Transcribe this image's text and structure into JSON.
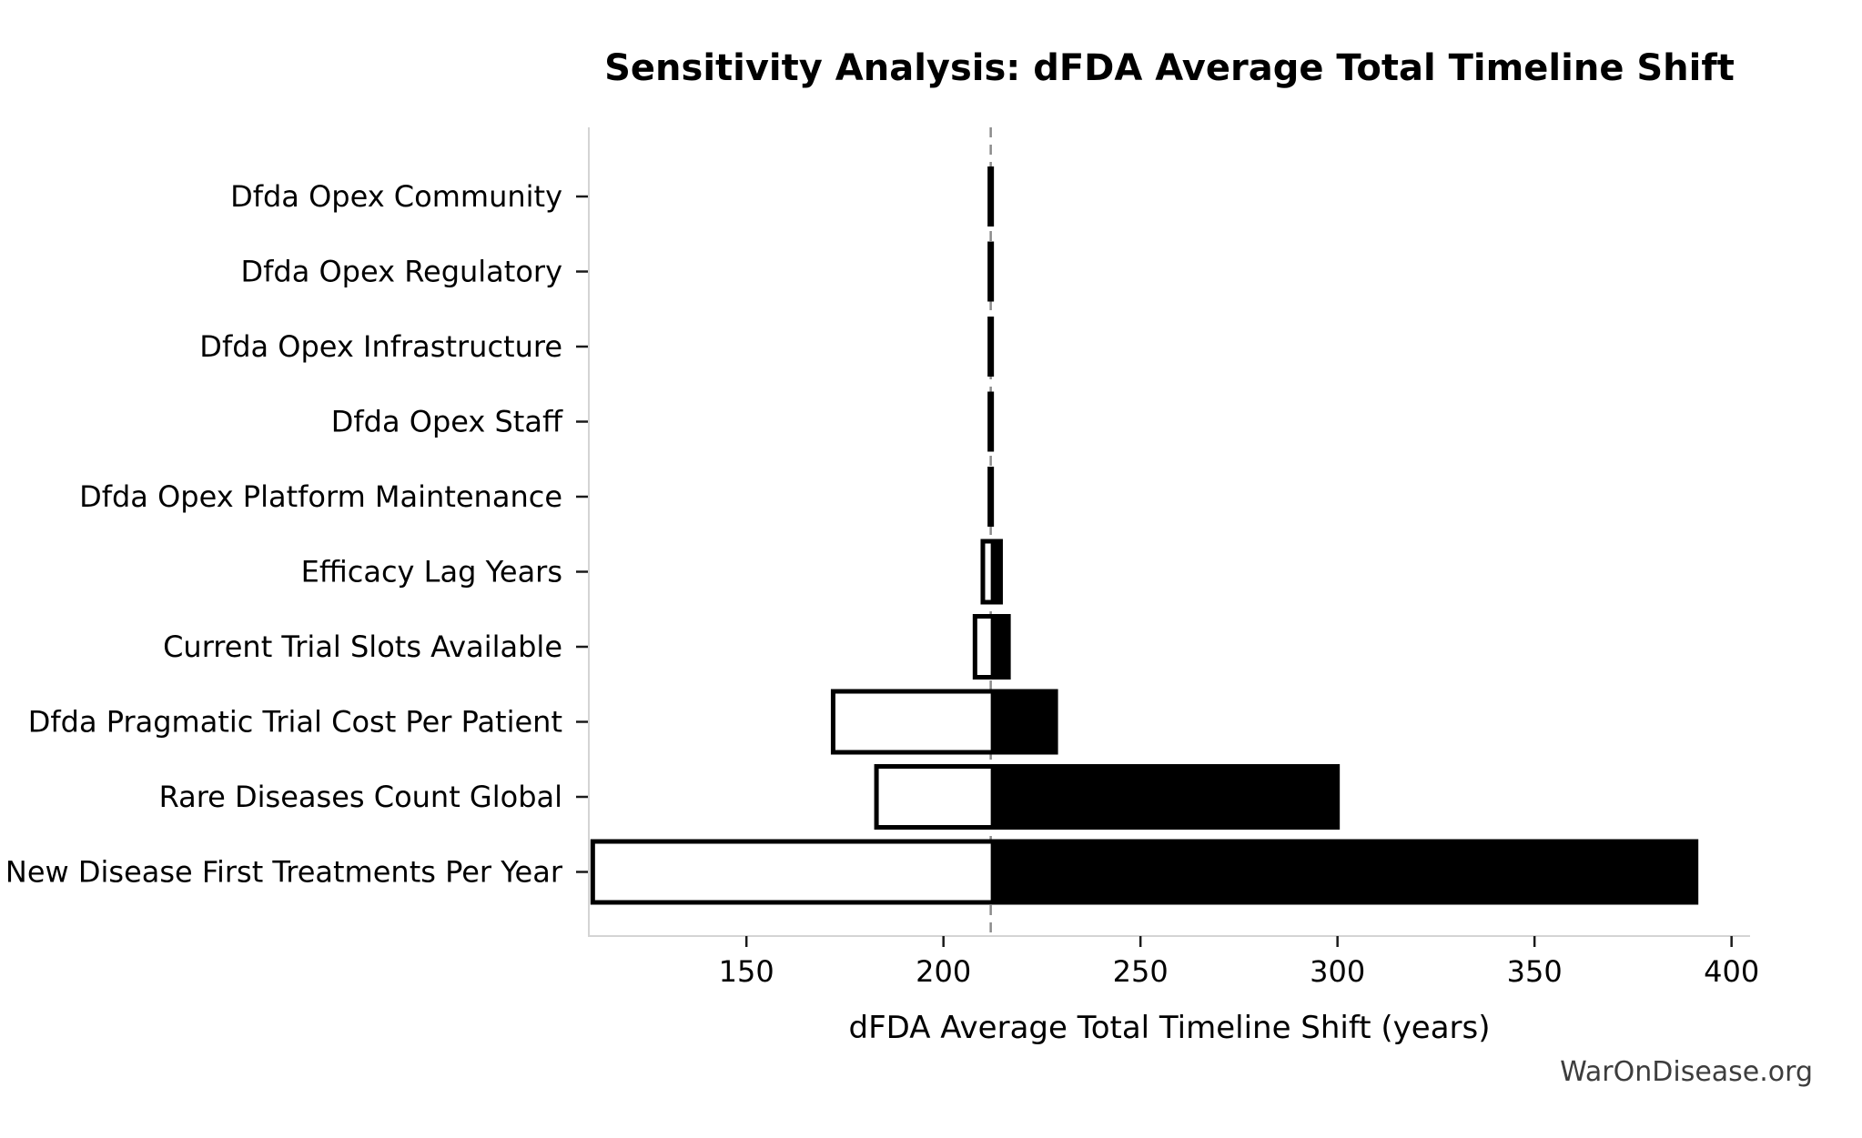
{
  "page": {
    "background": "#ffffff"
  },
  "chart_data": {
    "type": "bar",
    "subtype": "tornado-sensitivity",
    "orientation": "horizontal",
    "title": "Sensitivity Analysis: dFDA Average Total Timeline Shift",
    "xlabel": "dFDA Average Total Timeline Shift (years)",
    "ylabel": "",
    "baseline": 212,
    "xlim": [
      110,
      404.7
    ],
    "xticks": [
      150,
      200,
      250,
      300,
      350,
      400
    ],
    "grid": false,
    "legend": false,
    "categories": [
      "Dfda Opex Community",
      "Dfda Opex Regulatory",
      "Dfda Opex Infrastructure",
      "Dfda Opex Staff",
      "Dfda Opex Platform Maintenance",
      "Efficacy Lag Years",
      "Current Trial Slots Available",
      "Dfda Pragmatic Trial Cost Per Patient",
      "Rare Diseases Count Global",
      "New Disease First Treatments Per Year"
    ],
    "series": [
      {
        "name": "low",
        "values": [
          212,
          212,
          212,
          212,
          212,
          210,
          208,
          172,
          183,
          111
        ]
      },
      {
        "name": "high",
        "values": [
          212,
          212,
          212,
          212,
          212,
          214.5,
          216.5,
          228.5,
          300,
          391
        ]
      }
    ],
    "colors": {
      "bar_above_baseline_fill": "#000000",
      "bar_below_baseline_fill": "#ffffff",
      "bar_border": "#000000",
      "baseline_line": "#8c8c8c",
      "axis_spine": "#d4d4d4",
      "tick_mark": "#1a1a1a",
      "text": "#000000"
    }
  },
  "footer": {
    "text": "WarOnDisease.org"
  }
}
